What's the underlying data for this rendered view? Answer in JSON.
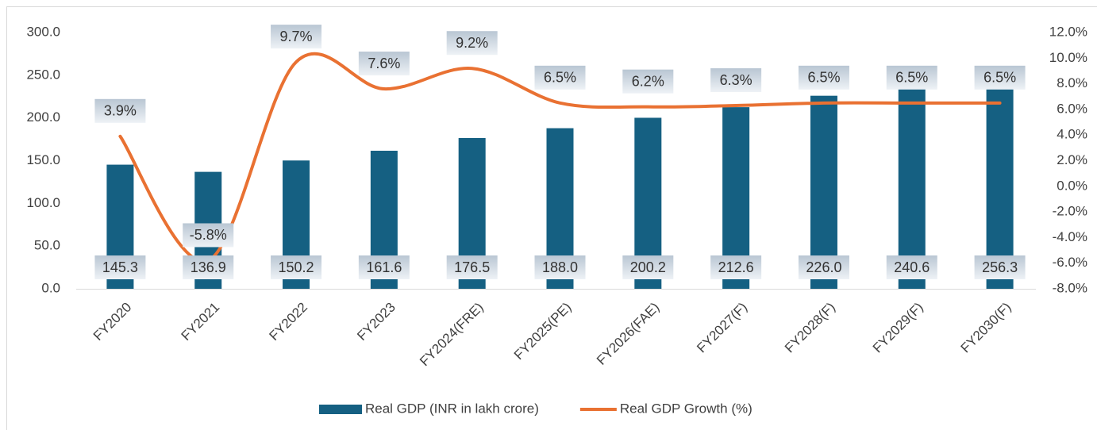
{
  "chart_data": {
    "type": "bar_line",
    "categories": [
      "FY2020",
      "FY2021",
      "FY2022",
      "FY2023",
      "FY2024(FRE)",
      "FY2025(PE)",
      "FY2026(FAE)",
      "FY2027(F)",
      "FY2028(F)",
      "FY2029(F)",
      "FY2030(F)"
    ],
    "series": [
      {
        "name": "Real GDP (INR in lakh crore)",
        "type": "bar",
        "color": "#156082",
        "values": [
          145.3,
          136.9,
          150.2,
          161.6,
          176.5,
          188.0,
          200.2,
          212.6,
          226.0,
          240.6,
          256.3
        ],
        "value_labels": [
          "145.3",
          "136.9",
          "150.2",
          "161.6",
          "176.5",
          "188.0",
          "200.2",
          "212.6",
          "226.0",
          "240.6",
          "256.3"
        ]
      },
      {
        "name": "Real GDP Growth (%)",
        "type": "line",
        "axis": "y2",
        "color": "#e97132",
        "values": [
          3.9,
          -5.8,
          9.7,
          7.6,
          9.2,
          6.5,
          6.2,
          6.3,
          6.5,
          6.5,
          6.5
        ],
        "value_labels": [
          "3.9%",
          "-5.8%",
          "9.7%",
          "7.6%",
          "9.2%",
          "6.5%",
          "6.2%",
          "6.3%",
          "6.5%",
          "6.5%",
          "6.5%"
        ]
      }
    ],
    "ylim": [
      0,
      300
    ],
    "yticks": [
      {
        "value": 0,
        "label": "0.0"
      },
      {
        "value": 50,
        "label": "50.0"
      },
      {
        "value": 100,
        "label": "100.0"
      },
      {
        "value": 150,
        "label": "150.0"
      },
      {
        "value": 200,
        "label": "200.0"
      },
      {
        "value": 250,
        "label": "250.0"
      },
      {
        "value": 300,
        "label": "300.0"
      }
    ],
    "y2lim": [
      -8,
      12
    ],
    "y2ticks": [
      {
        "value": -8,
        "label": "-8.0%"
      },
      {
        "value": -6,
        "label": "-6.0%"
      },
      {
        "value": -4,
        "label": "-4.0%"
      },
      {
        "value": -2,
        "label": "-2.0%"
      },
      {
        "value": 0,
        "label": "0.0%"
      },
      {
        "value": 2,
        "label": "2.0%"
      },
      {
        "value": 4,
        "label": "4.0%"
      },
      {
        "value": 6,
        "label": "6.0%"
      },
      {
        "value": 8,
        "label": "8.0%"
      },
      {
        "value": 10,
        "label": "10.0%"
      },
      {
        "value": 12,
        "label": "12.0%"
      }
    ],
    "grid": false,
    "legend": "bottom"
  }
}
